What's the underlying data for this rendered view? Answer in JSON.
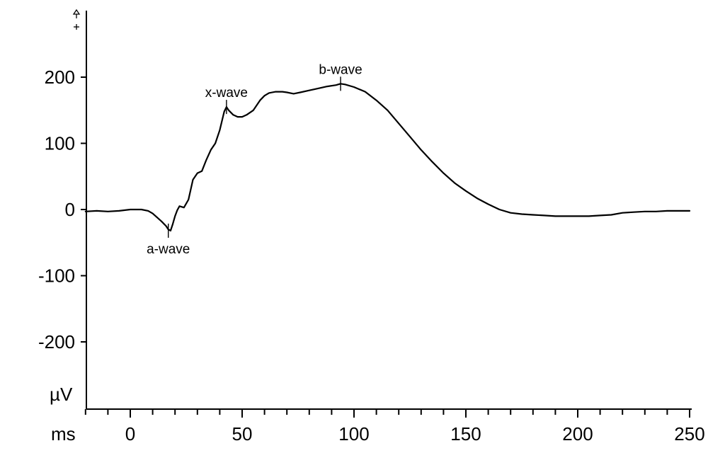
{
  "chart_data": {
    "type": "line",
    "title": "",
    "xlabel": "ms",
    "ylabel": "µV",
    "xlim": [
      -20,
      250
    ],
    "ylim": [
      -290,
      300
    ],
    "grid": false,
    "x_ticks": [
      0,
      50,
      100,
      150,
      200,
      250
    ],
    "y_ticks": [
      -200,
      -100,
      0,
      100,
      200
    ],
    "series": [
      {
        "x": [
          -20,
          -15,
          -10,
          -5,
          0,
          5,
          8,
          10,
          12,
          14,
          16,
          17,
          18,
          19,
          20,
          21,
          22,
          24,
          26,
          28,
          30,
          32,
          34,
          36,
          38,
          40,
          42,
          43,
          44,
          46,
          48,
          50,
          52,
          55,
          58,
          60,
          62,
          65,
          68,
          70,
          73,
          76,
          80,
          84,
          88,
          92,
          94,
          96,
          100,
          105,
          110,
          115,
          120,
          125,
          130,
          135,
          140,
          145,
          150,
          155,
          160,
          165,
          170,
          175,
          180,
          185,
          190,
          195,
          200,
          205,
          210,
          215,
          220,
          225,
          230,
          235,
          240,
          245,
          250
        ],
        "y": [
          -3,
          -2,
          -3,
          -2,
          0,
          0,
          -2,
          -6,
          -12,
          -18,
          -25,
          -30,
          -32,
          -22,
          -10,
          -1,
          5,
          3,
          15,
          45,
          55,
          58,
          75,
          90,
          100,
          120,
          148,
          155,
          150,
          143,
          140,
          140,
          143,
          150,
          165,
          172,
          176,
          178,
          178,
          177,
          175,
          177,
          180,
          183,
          186,
          188,
          190,
          189,
          185,
          178,
          165,
          150,
          130,
          110,
          90,
          72,
          55,
          40,
          28,
          17,
          8,
          0,
          -5,
          -7,
          -8,
          -9,
          -10,
          -10,
          -10,
          -10,
          -9,
          -8,
          -5,
          -4,
          -3,
          -3,
          -2,
          -2,
          -2
        ]
      }
    ],
    "annotations": [
      {
        "label": "a-wave",
        "x": 17,
        "y": -32,
        "position": "below"
      },
      {
        "label": "x-wave",
        "x": 43,
        "y": 155,
        "position": "above"
      },
      {
        "label": "b-wave",
        "x": 94,
        "y": 190,
        "position": "above"
      }
    ]
  }
}
